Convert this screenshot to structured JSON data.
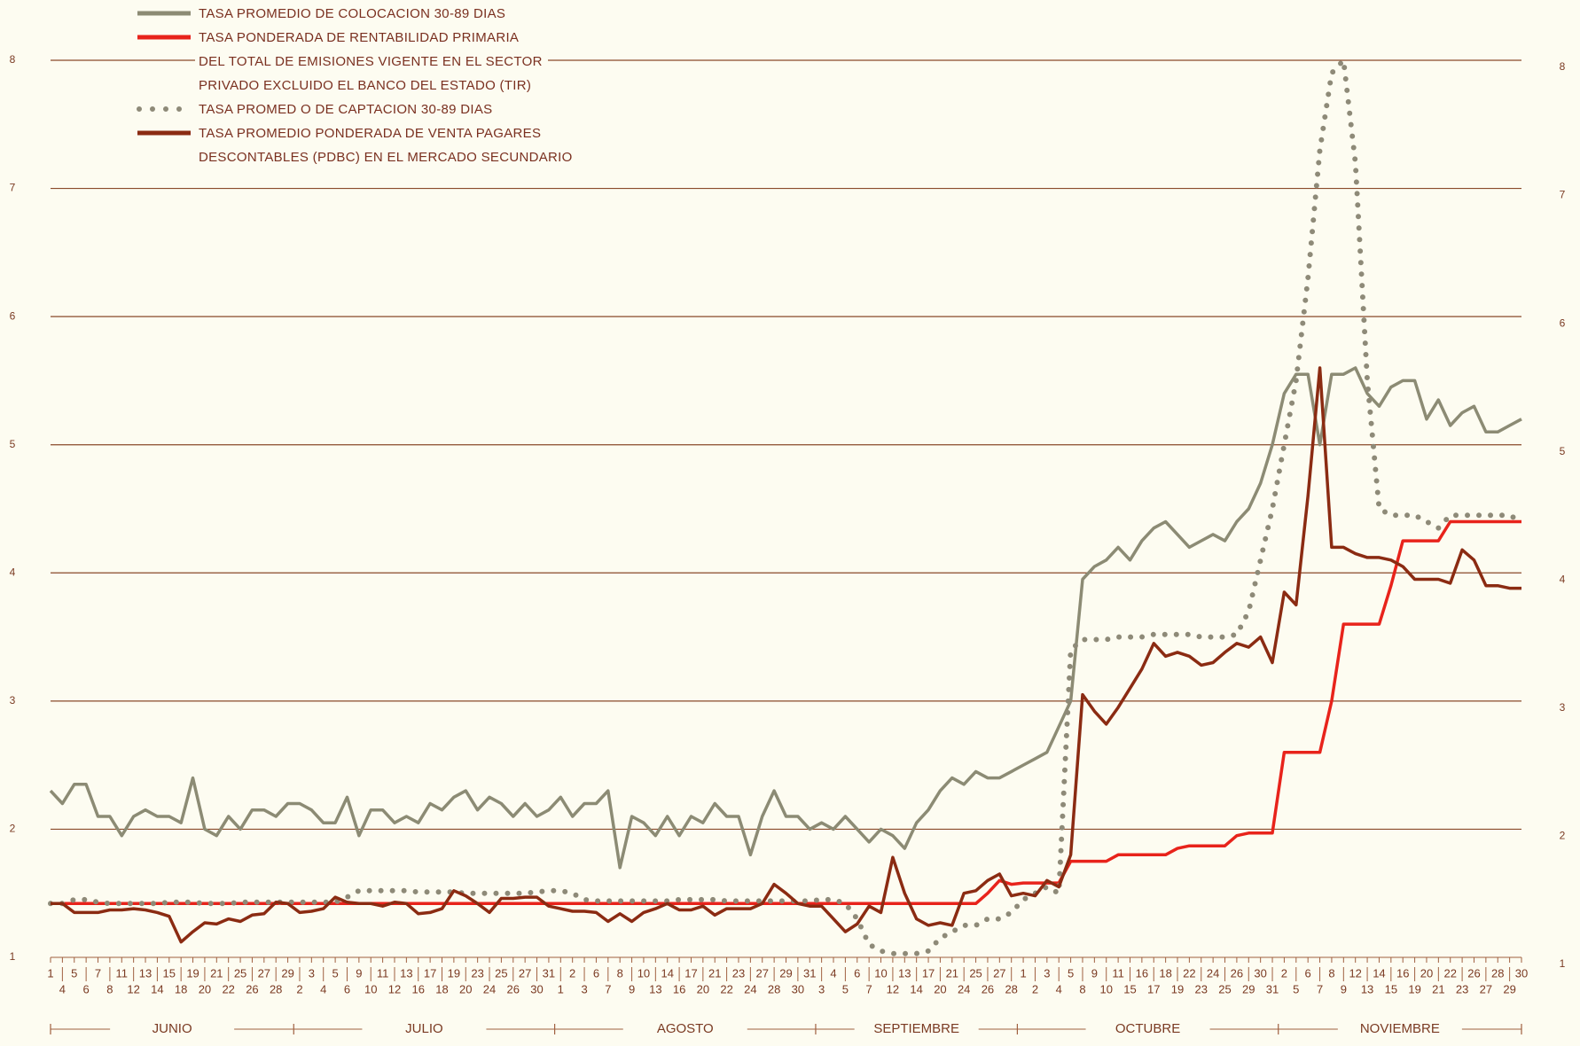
{
  "chart_data": {
    "type": "line",
    "categories": [
      "1",
      "4",
      "5",
      "6",
      "7",
      "8",
      "11",
      "12",
      "13",
      "14",
      "15",
      "18",
      "19",
      "20",
      "21",
      "22",
      "25",
      "26",
      "27",
      "28",
      "29",
      "2",
      "3",
      "4",
      "5",
      "6",
      "9",
      "10",
      "11",
      "12",
      "13",
      "16",
      "17",
      "18",
      "19",
      "20",
      "23",
      "24",
      "25",
      "26",
      "27",
      "30",
      "31",
      "1",
      "2",
      "3",
      "6",
      "7",
      "8",
      "9",
      "10",
      "13",
      "14",
      "16",
      "17",
      "20",
      "21",
      "22",
      "23",
      "24",
      "27",
      "28",
      "29",
      "30",
      "31",
      "3",
      "4",
      "5",
      "6",
      "7",
      "10",
      "12",
      "13",
      "14",
      "17",
      "20",
      "21",
      "24",
      "25",
      "26",
      "27",
      "28",
      "1",
      "2",
      "3",
      "4",
      "5",
      "8",
      "9",
      "10",
      "11",
      "15",
      "16",
      "17",
      "18",
      "19",
      "22",
      "23",
      "24",
      "25",
      "26",
      "29",
      "30",
      "31",
      "2",
      "5",
      "6",
      "7",
      "8",
      "9",
      "12",
      "13",
      "14",
      "15",
      "16",
      "19",
      "20",
      "21",
      "22",
      "23",
      "26",
      "27",
      "28",
      "29",
      "30"
    ],
    "months": [
      "JUNIO",
      "JULIO",
      "AGOSTO",
      "SEPTIEMBRE",
      "OCTUBRE",
      "NOVIEMBRE"
    ],
    "ylim": [
      1,
      8
    ],
    "yticks": [
      1,
      2,
      3,
      4,
      5,
      6,
      7,
      8
    ],
    "grid": true,
    "series": [
      {
        "name": "TASA PROMEDIO DE COLOCACION 30-89 DIAS",
        "color": "#8c8b74",
        "style": "solid",
        "values": [
          2.3,
          2.2,
          2.35,
          2.35,
          2.1,
          2.1,
          1.95,
          2.1,
          2.15,
          2.1,
          2.1,
          2.05,
          2.4,
          2.0,
          1.95,
          2.1,
          2.0,
          2.15,
          2.15,
          2.1,
          2.2,
          2.2,
          2.15,
          2.05,
          2.05,
          2.25,
          1.95,
          2.15,
          2.15,
          2.05,
          2.1,
          2.05,
          2.2,
          2.15,
          2.25,
          2.3,
          2.15,
          2.25,
          2.2,
          2.1,
          2.2,
          2.1,
          2.15,
          2.25,
          2.1,
          2.2,
          2.2,
          2.3,
          1.7,
          2.1,
          2.05,
          1.95,
          2.1,
          1.95,
          2.1,
          2.05,
          2.2,
          2.1,
          2.1,
          1.8,
          2.1,
          2.3,
          2.1,
          2.1,
          2.0,
          2.05,
          2.0,
          2.1,
          2.0,
          1.9,
          2.0,
          1.95,
          1.85,
          2.05,
          2.15,
          2.3,
          2.4,
          2.35,
          2.45,
          2.4,
          2.4,
          2.45,
          2.5,
          2.55,
          2.6,
          2.8,
          3.0,
          3.95,
          4.05,
          4.1,
          4.2,
          4.1,
          4.25,
          4.35,
          4.4,
          4.3,
          4.2,
          4.25,
          4.3,
          4.25,
          4.4,
          4.5,
          4.7,
          5.0,
          5.4,
          5.55,
          5.55,
          5.0,
          5.55,
          5.55,
          5.6,
          5.4,
          5.3,
          5.45,
          5.5,
          5.5,
          5.2,
          5.35,
          5.15,
          5.25,
          5.3,
          5.1,
          5.1,
          5.15,
          5.2
        ]
      },
      {
        "name": "TASA PONDERADA DE RENTABILIDAD PRIMARIA DEL TOTAL DE EMISIONES VIGENTE EN EL SECTOR PRIVADO EXCLUIDO EL BANCO DEL ESTADO (TIR)",
        "color": "#e8231b",
        "style": "solid",
        "values": [
          1.42,
          1.42,
          1.42,
          1.42,
          1.42,
          1.42,
          1.42,
          1.42,
          1.42,
          1.42,
          1.42,
          1.42,
          1.42,
          1.42,
          1.42,
          1.42,
          1.42,
          1.42,
          1.42,
          1.42,
          1.42,
          1.42,
          1.42,
          1.42,
          1.42,
          1.42,
          1.42,
          1.42,
          1.42,
          1.42,
          1.42,
          1.42,
          1.42,
          1.42,
          1.42,
          1.42,
          1.42,
          1.42,
          1.42,
          1.42,
          1.42,
          1.42,
          1.42,
          1.42,
          1.42,
          1.42,
          1.42,
          1.42,
          1.42,
          1.42,
          1.42,
          1.42,
          1.42,
          1.42,
          1.42,
          1.42,
          1.42,
          1.42,
          1.42,
          1.42,
          1.42,
          1.42,
          1.42,
          1.42,
          1.42,
          1.42,
          1.42,
          1.42,
          1.42,
          1.42,
          1.42,
          1.42,
          1.42,
          1.42,
          1.42,
          1.42,
          1.42,
          1.42,
          1.42,
          1.5,
          1.6,
          1.57,
          1.58,
          1.58,
          1.58,
          1.58,
          1.75,
          1.75,
          1.75,
          1.75,
          1.8,
          1.8,
          1.8,
          1.8,
          1.8,
          1.85,
          1.87,
          1.87,
          1.87,
          1.87,
          1.95,
          1.97,
          1.97,
          1.97,
          2.6,
          2.6,
          2.6,
          2.6,
          3.0,
          3.6,
          3.6,
          3.6,
          3.6,
          3.9,
          4.25,
          4.25,
          4.25,
          4.25,
          4.4,
          4.4,
          4.4,
          4.4,
          4.4,
          4.4,
          4.4
        ]
      },
      {
        "name": "TASA PROMED O DE CAPTACION 30-89 DIAS",
        "color": "#8e8a78",
        "style": "dotted",
        "values": [
          1.42,
          1.42,
          1.45,
          1.45,
          1.43,
          1.42,
          1.42,
          1.42,
          1.42,
          1.42,
          1.43,
          1.43,
          1.43,
          1.42,
          1.42,
          1.42,
          1.43,
          1.43,
          1.43,
          1.43,
          1.43,
          1.43,
          1.43,
          1.43,
          1.43,
          1.47,
          1.52,
          1.52,
          1.52,
          1.52,
          1.52,
          1.51,
          1.51,
          1.51,
          1.51,
          1.5,
          1.5,
          1.5,
          1.5,
          1.5,
          1.5,
          1.51,
          1.52,
          1.52,
          1.5,
          1.45,
          1.44,
          1.44,
          1.44,
          1.44,
          1.44,
          1.44,
          1.44,
          1.45,
          1.45,
          1.45,
          1.45,
          1.44,
          1.44,
          1.44,
          1.44,
          1.44,
          1.44,
          1.44,
          1.44,
          1.45,
          1.45,
          1.42,
          1.3,
          1.1,
          1.05,
          1.03,
          1.03,
          1.03,
          1.05,
          1.15,
          1.2,
          1.25,
          1.25,
          1.3,
          1.3,
          1.35,
          1.45,
          1.5,
          1.55,
          1.5,
          3.4,
          3.48,
          3.48,
          3.48,
          3.5,
          3.5,
          3.5,
          3.52,
          3.52,
          3.52,
          3.52,
          3.5,
          3.5,
          3.5,
          3.52,
          3.7,
          4.1,
          4.5,
          5.0,
          5.5,
          6.3,
          7.3,
          7.9,
          8.0,
          7.2,
          5.5,
          4.5,
          4.45,
          4.45,
          4.45,
          4.4,
          4.35,
          4.45,
          4.45,
          4.45,
          4.45,
          4.45,
          4.45,
          4.4
        ]
      },
      {
        "name": "TASA PROMEDIO PONDERADA DE VENTA PAGARES DESCONTABLES (PDBC) EN EL MERCADO SECUNDARIO",
        "color": "#8b2b12",
        "style": "solid",
        "values": [
          1.42,
          1.42,
          1.35,
          1.35,
          1.35,
          1.37,
          1.37,
          1.38,
          1.37,
          1.35,
          1.32,
          1.12,
          1.2,
          1.27,
          1.26,
          1.3,
          1.28,
          1.33,
          1.34,
          1.43,
          1.42,
          1.35,
          1.36,
          1.38,
          1.47,
          1.43,
          1.42,
          1.42,
          1.4,
          1.43,
          1.42,
          1.34,
          1.35,
          1.38,
          1.52,
          1.48,
          1.42,
          1.35,
          1.46,
          1.46,
          1.47,
          1.47,
          1.4,
          1.38,
          1.36,
          1.36,
          1.35,
          1.28,
          1.34,
          1.28,
          1.35,
          1.38,
          1.42,
          1.37,
          1.37,
          1.4,
          1.33,
          1.38,
          1.38,
          1.38,
          1.42,
          1.57,
          1.5,
          1.42,
          1.4,
          1.4,
          1.3,
          1.2,
          1.26,
          1.4,
          1.35,
          1.78,
          1.5,
          1.3,
          1.25,
          1.27,
          1.25,
          1.5,
          1.52,
          1.6,
          1.65,
          1.48,
          1.5,
          1.48,
          1.6,
          1.55,
          1.8,
          3.05,
          2.92,
          2.82,
          2.95,
          3.1,
          3.25,
          3.45,
          3.35,
          3.38,
          3.35,
          3.28,
          3.3,
          3.38,
          3.45,
          3.42,
          3.5,
          3.3,
          3.85,
          3.75,
          4.6,
          5.6,
          4.2,
          4.2,
          4.15,
          4.12,
          4.12,
          4.1,
          4.05,
          3.95,
          3.95,
          3.95,
          3.92,
          4.18,
          4.1,
          3.9,
          3.9,
          3.88,
          3.88
        ]
      }
    ]
  }
}
